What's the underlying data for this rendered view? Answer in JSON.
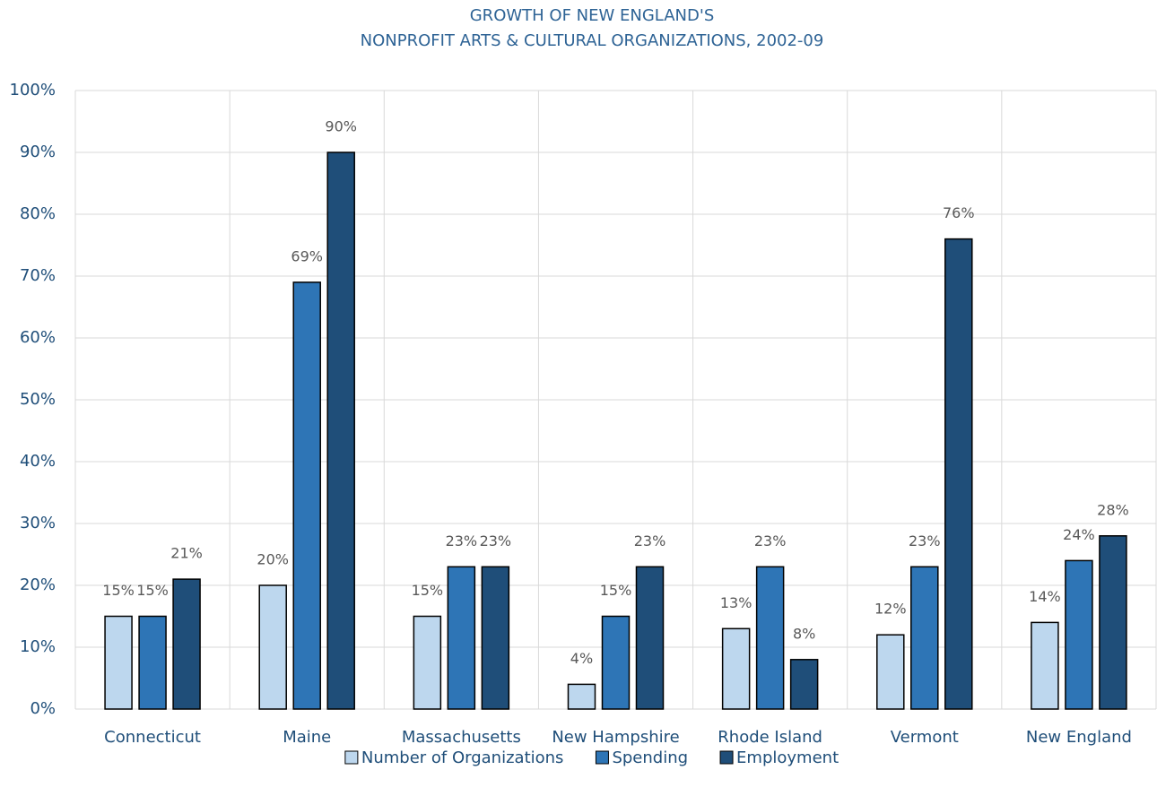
{
  "chart_data": {
    "type": "bar",
    "title_lines": [
      "GROWTH OF NEW ENGLAND'S",
      "NONPROFIT ARTS & CULTURAL ORGANIZATIONS, 2002-09"
    ],
    "categories": [
      "Connecticut",
      "Maine",
      "Massachusetts",
      "New Hampshire",
      "Rhode Island",
      "Vermont",
      "New England"
    ],
    "series": [
      {
        "name": "Number of Organizations",
        "color": "#bdd7ee",
        "values": [
          15,
          20,
          15,
          4,
          13,
          12,
          14
        ],
        "value_labels": [
          "15%",
          "20%",
          "15%",
          "4%",
          "13%",
          "12%",
          "14%"
        ]
      },
      {
        "name": "Spending",
        "color": "#2e75b6",
        "values": [
          15,
          69,
          23,
          15,
          23,
          23,
          24
        ],
        "value_labels": [
          "15%",
          "69%",
          "23%",
          "15%",
          "23%",
          "23%",
          "24%"
        ]
      },
      {
        "name": "Employment",
        "color": "#1f4e79",
        "values": [
          21,
          90,
          23,
          23,
          8,
          76,
          28
        ],
        "value_labels": [
          "21%",
          "90%",
          "23%",
          "23%",
          "8%",
          "76%",
          "28%"
        ]
      }
    ],
    "ylim": [
      0,
      100
    ],
    "yticks": [
      {
        "value": 0,
        "label": "0%"
      },
      {
        "value": 10,
        "label": "10%"
      },
      {
        "value": 20,
        "label": "20%"
      },
      {
        "value": 30,
        "label": "30%"
      },
      {
        "value": 40,
        "label": "40%"
      },
      {
        "value": 50,
        "label": "50%"
      },
      {
        "value": 60,
        "label": "60%"
      },
      {
        "value": 70,
        "label": "70%"
      },
      {
        "value": 80,
        "label": "80%"
      },
      {
        "value": 90,
        "label": "90%"
      },
      {
        "value": 100,
        "label": "100%"
      }
    ],
    "grid": true,
    "legend": "bottom"
  }
}
